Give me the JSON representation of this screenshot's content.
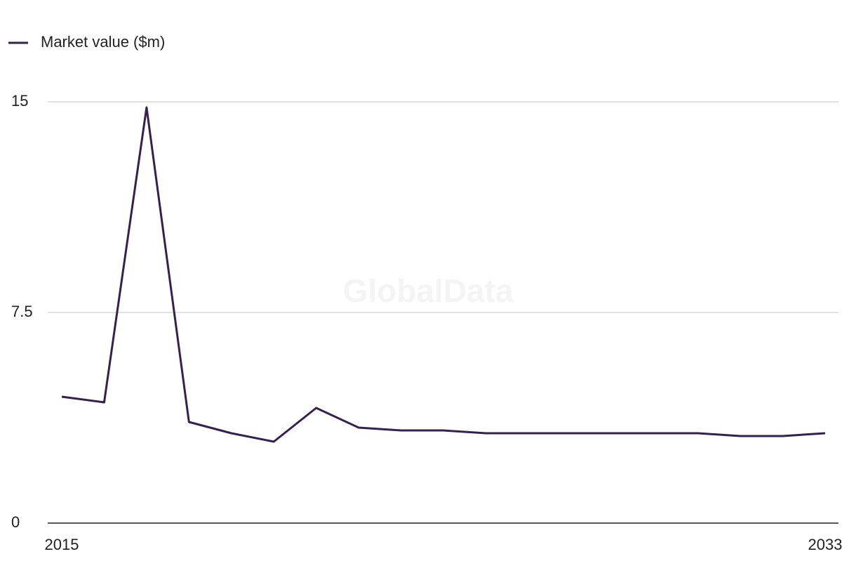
{
  "chart_data": {
    "type": "line",
    "watermark": "GlobalData",
    "x": [
      2015,
      2016,
      2017,
      2018,
      2019,
      2020,
      2021,
      2022,
      2023,
      2024,
      2025,
      2026,
      2027,
      2028,
      2029,
      2030,
      2031,
      2032,
      2033
    ],
    "series": [
      {
        "name": "Market value ($m)",
        "color": "#35204f",
        "values": [
          4.5,
          4.3,
          14.8,
          3.6,
          3.2,
          2.9,
          4.1,
          3.4,
          3.3,
          3.3,
          3.2,
          3.2,
          3.2,
          3.2,
          3.2,
          3.2,
          3.1,
          3.1,
          3.2
        ]
      }
    ],
    "xlim": [
      2015,
      2033
    ],
    "xticks": [
      2015,
      2033
    ],
    "ylim": [
      0,
      15
    ],
    "yticks": [
      0,
      7.5,
      15
    ],
    "grid": true,
    "legend": "top-left"
  }
}
